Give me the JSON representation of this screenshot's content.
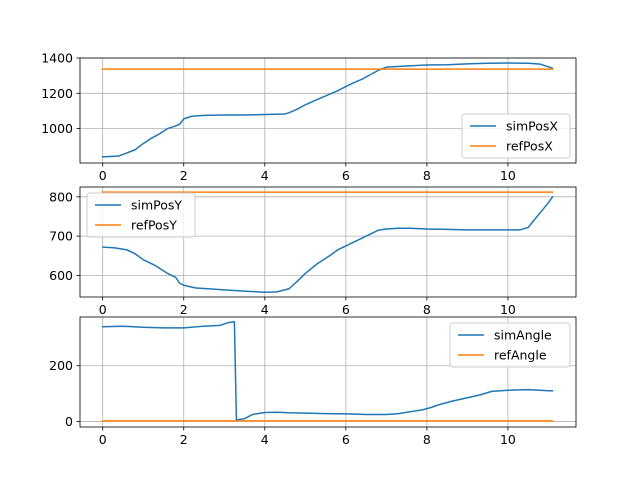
{
  "chart_data": [
    {
      "type": "line",
      "xlim": [
        -0.56,
        11.68
      ],
      "ylim": [
        805,
        1400
      ],
      "xticks": [
        0,
        2,
        4,
        6,
        8,
        10
      ],
      "yticks": [
        1000,
        1200,
        1400
      ],
      "grid": true,
      "legend_position": "lower-right",
      "series": [
        {
          "name": "simPosX",
          "color": "#1f77b4",
          "x": [
            0,
            0.4,
            0.6,
            0.8,
            1.0,
            1.2,
            1.4,
            1.6,
            1.8,
            1.9,
            2.0,
            2.2,
            2.5,
            3.0,
            3.5,
            4.0,
            4.5,
            4.6,
            4.8,
            5.0,
            5.2,
            5.4,
            5.6,
            5.8,
            6.0,
            6.2,
            6.4,
            6.6,
            6.8,
            7.0,
            7.5,
            8.0,
            8.5,
            9.0,
            9.5,
            10.0,
            10.5,
            10.8,
            11.0,
            11.1
          ],
          "y": [
            840,
            845,
            862,
            880,
            915,
            945,
            970,
            1000,
            1015,
            1025,
            1055,
            1070,
            1075,
            1077,
            1077,
            1080,
            1083,
            1090,
            1110,
            1135,
            1155,
            1175,
            1195,
            1215,
            1238,
            1260,
            1280,
            1305,
            1330,
            1348,
            1355,
            1360,
            1362,
            1367,
            1370,
            1372,
            1370,
            1365,
            1350,
            1342
          ]
        },
        {
          "name": "refPosX",
          "color": "#ff7f0e",
          "x": [
            0,
            11.1
          ],
          "y": [
            1337,
            1337
          ]
        }
      ]
    },
    {
      "type": "line",
      "xlim": [
        -0.56,
        11.68
      ],
      "ylim": [
        545,
        825
      ],
      "xticks": [
        0,
        2,
        4,
        6,
        8,
        10
      ],
      "yticks": [
        600,
        700,
        800
      ],
      "grid": true,
      "legend_position": "upper-left",
      "series": [
        {
          "name": "simPosY",
          "color": "#1f77b4",
          "x": [
            0,
            0.3,
            0.6,
            0.8,
            1.0,
            1.3,
            1.6,
            1.8,
            1.9,
            2.0,
            2.3,
            2.6,
            3.0,
            3.5,
            4.0,
            4.3,
            4.6,
            4.8,
            5.0,
            5.3,
            5.6,
            5.8,
            6.0,
            6.3,
            6.6,
            6.8,
            7.0,
            7.3,
            7.6,
            8.0,
            8.5,
            9.0,
            9.5,
            10.0,
            10.3,
            10.5,
            10.6,
            10.8,
            11.0,
            11.1
          ],
          "y": [
            672,
            670,
            665,
            655,
            640,
            625,
            605,
            595,
            580,
            575,
            568,
            566,
            563,
            560,
            557,
            558,
            566,
            585,
            605,
            630,
            650,
            665,
            675,
            690,
            705,
            715,
            718,
            720,
            720,
            718,
            717,
            716,
            716,
            716,
            716,
            722,
            735,
            760,
            785,
            800
          ]
        },
        {
          "name": "refPosY",
          "color": "#ff7f0e",
          "x": [
            0,
            11.1
          ],
          "y": [
            812,
            812
          ]
        }
      ]
    },
    {
      "type": "line",
      "xlim": [
        -0.56,
        11.68
      ],
      "ylim": [
        -20,
        375
      ],
      "xticks": [
        0,
        2,
        4,
        6,
        8,
        10
      ],
      "yticks": [
        0,
        200
      ],
      "grid": true,
      "legend_position": "upper-right",
      "series": [
        {
          "name": "simAngle",
          "color": "#1f77b4",
          "x": [
            0,
            0.5,
            1.0,
            1.5,
            2.0,
            2.5,
            2.9,
            3.1,
            3.25,
            3.3,
            3.5,
            3.7,
            4.0,
            4.3,
            4.6,
            5.0,
            5.5,
            6.0,
            6.5,
            7.0,
            7.3,
            7.6,
            7.9,
            8.1,
            8.3,
            8.6,
            9.0,
            9.3,
            9.6,
            10.0,
            10.5,
            10.8,
            11.0,
            11.1
          ],
          "y": [
            340,
            342,
            338,
            336,
            336,
            342,
            345,
            355,
            358,
            5,
            10,
            25,
            32,
            33,
            31,
            30,
            28,
            27,
            25,
            25,
            28,
            35,
            42,
            50,
            60,
            72,
            85,
            95,
            108,
            112,
            114,
            112,
            110,
            110
          ]
        },
        {
          "name": "refAngle",
          "color": "#ff7f0e",
          "x": [
            0,
            11.1
          ],
          "y": [
            2,
            2
          ]
        }
      ]
    }
  ]
}
